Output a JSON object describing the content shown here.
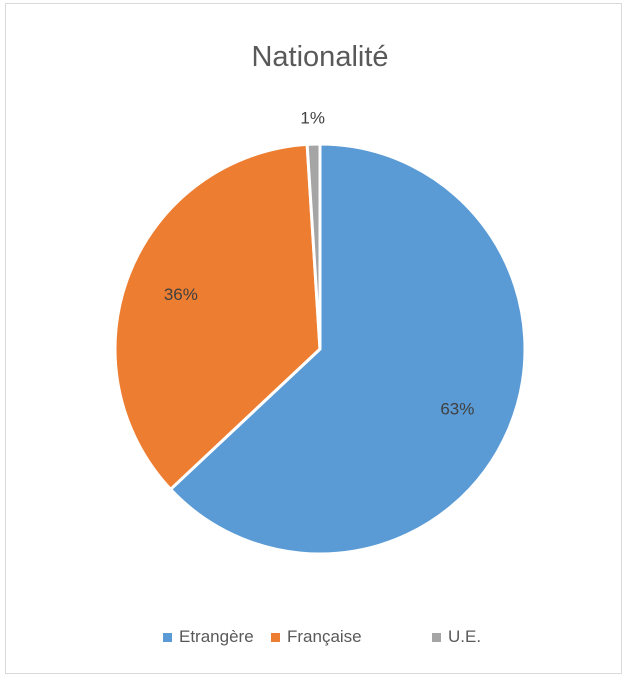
{
  "chart_data": {
    "type": "pie",
    "title": "Nationalité",
    "categories": [
      "Etrangère",
      "Française",
      "U.E."
    ],
    "values": [
      63,
      36,
      1
    ],
    "data_labels": [
      "63%",
      "36%",
      "1%"
    ],
    "colors": [
      "#5b9bd5",
      "#ed7d31",
      "#a5a5a5"
    ],
    "legend_position": "bottom",
    "start_angle": "12 o'clock",
    "direction": "clockwise"
  }
}
